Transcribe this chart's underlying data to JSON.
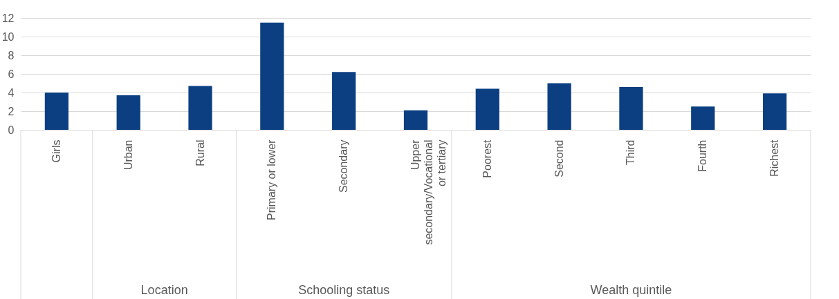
{
  "chart_data": {
    "type": "bar",
    "categories": [
      "Girls",
      "Urban",
      "Rural",
      "Primary or lower",
      "Secondary",
      "Upper secondary/Vocational or tertiary",
      "Poorest",
      "Second",
      "Third",
      "Fourth",
      "Richest"
    ],
    "values": [
      4.0,
      3.7,
      4.7,
      11.5,
      6.2,
      2.1,
      4.4,
      5.0,
      4.6,
      2.5,
      3.9
    ],
    "color": "#0b3f82",
    "ylim": [
      0,
      12
    ],
    "yticks": [
      0,
      2,
      4,
      6,
      8,
      10,
      12
    ],
    "grid": "y",
    "annotations": [
      "Location",
      "Schooling status",
      "Wealth quintile"
    ]
  }
}
